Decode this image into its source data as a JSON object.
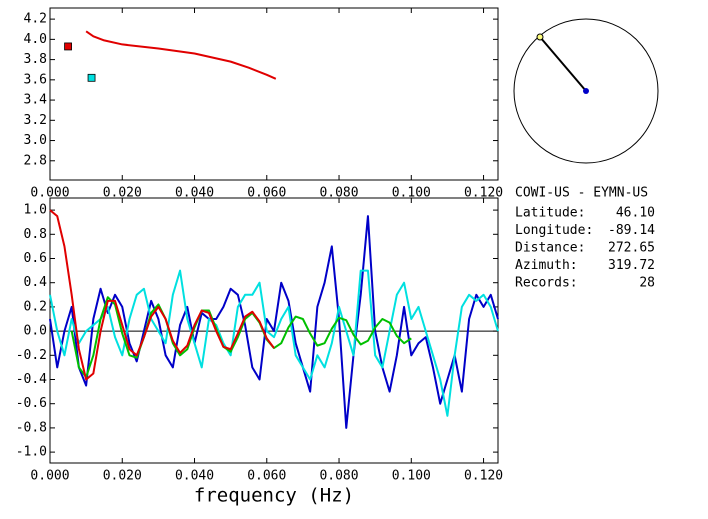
{
  "chart_data": [
    {
      "type": "line",
      "xlim": [
        0,
        0.124
      ],
      "ylim": [
        2.61,
        4.31
      ],
      "xticks": [
        {
          "value": 0,
          "label": "0.000"
        },
        {
          "value": 0.02,
          "label": "0.020"
        },
        {
          "value": 0.04,
          "label": "0.040"
        },
        {
          "value": 0.06,
          "label": "0.060"
        },
        {
          "value": 0.08,
          "label": "0.080"
        },
        {
          "value": 0.1,
          "label": "0.100"
        },
        {
          "value": 0.12,
          "label": "0.120"
        }
      ],
      "yticks": [
        2.8,
        {
          "value": 3,
          "label": "3.0"
        },
        3.2,
        3.4,
        3.6,
        3.8,
        {
          "value": 4,
          "label": "4.0"
        },
        4.2
      ],
      "series": [
        {
          "mode": "line",
          "color": "#e00000",
          "x": [
            0.01,
            0.012,
            0.015,
            0.02,
            0.03,
            0.04,
            0.05,
            0.055,
            0.06,
            0.0625
          ],
          "values": [
            4.08,
            4.03,
            3.99,
            3.95,
            3.91,
            3.86,
            3.78,
            3.72,
            3.65,
            3.61
          ]
        },
        {
          "mode": "marker",
          "color": "#e00000",
          "x": [
            0.005
          ],
          "values": [
            3.93
          ]
        },
        {
          "mode": "marker",
          "color": "#00e0e0",
          "x": [
            0.0115
          ],
          "values": [
            3.62
          ]
        }
      ]
    },
    {
      "type": "line",
      "xlabel": "frequency (Hz)",
      "zero_line": true,
      "xlim": [
        0,
        0.124
      ],
      "ylim": [
        -1.09,
        1.1
      ],
      "xticks": [
        {
          "value": 0,
          "label": "0.000"
        },
        {
          "value": 0.02,
          "label": "0.020"
        },
        {
          "value": 0.04,
          "label": "0.040"
        },
        {
          "value": 0.06,
          "label": "0.060"
        },
        {
          "value": 0.08,
          "label": "0.080"
        },
        {
          "value": 0.1,
          "label": "0.100"
        },
        {
          "value": 0.12,
          "label": "0.120"
        }
      ],
      "yticks": [
        {
          "value": -1,
          "label": "-1.0"
        },
        -0.8,
        -0.6,
        -0.4,
        -0.2,
        {
          "value": 0,
          "label": "0.0"
        },
        0.2,
        0.4,
        0.6,
        0.8,
        {
          "value": 1,
          "label": "1.0"
        }
      ],
      "series": [
        {
          "mode": "line",
          "color": "#0000c8",
          "x": [
            0,
            0.002,
            0.004,
            0.006,
            0.008,
            0.01,
            0.012,
            0.014,
            0.016,
            0.018,
            0.02,
            0.022,
            0.024,
            0.026,
            0.028,
            0.03,
            0.032,
            0.034,
            0.036,
            0.038,
            0.04,
            0.042,
            0.044,
            0.046,
            0.048,
            0.05,
            0.052,
            0.054,
            0.056,
            0.058,
            0.06,
            0.062,
            0.064,
            0.066,
            0.068,
            0.07,
            0.072,
            0.074,
            0.076,
            0.078,
            0.08,
            0.082,
            0.084,
            0.086,
            0.088,
            0.09,
            0.092,
            0.094,
            0.096,
            0.098,
            0.1,
            0.102,
            0.104,
            0.106,
            0.108,
            0.11,
            0.112,
            0.114,
            0.116,
            0.118,
            0.12,
            0.122,
            0.124
          ],
          "values": [
            0.1,
            -0.3,
            0.0,
            0.2,
            -0.3,
            -0.45,
            0.1,
            0.35,
            0.15,
            0.3,
            0.2,
            -0.1,
            -0.25,
            0.0,
            0.25,
            0.1,
            -0.2,
            -0.3,
            0.05,
            0.2,
            -0.1,
            0.15,
            0.1,
            0.1,
            0.2,
            0.35,
            0.3,
            0.05,
            -0.3,
            -0.4,
            0.1,
            0.0,
            0.4,
            0.25,
            -0.1,
            -0.3,
            -0.5,
            0.2,
            0.4,
            0.7,
            0.1,
            -0.8,
            -0.2,
            0.3,
            0.95,
            0.0,
            -0.3,
            -0.5,
            -0.2,
            0.2,
            -0.2,
            -0.1,
            -0.05,
            -0.3,
            -0.6,
            -0.4,
            -0.2,
            -0.5,
            0.1,
            0.3,
            0.2,
            0.3,
            0.1
          ]
        },
        {
          "mode": "line",
          "color": "#00e0e0",
          "x": [
            0,
            0.002,
            0.004,
            0.006,
            0.008,
            0.01,
            0.012,
            0.014,
            0.016,
            0.018,
            0.02,
            0.022,
            0.024,
            0.026,
            0.028,
            0.03,
            0.032,
            0.034,
            0.036,
            0.038,
            0.04,
            0.042,
            0.044,
            0.046,
            0.048,
            0.05,
            0.052,
            0.054,
            0.056,
            0.058,
            0.06,
            0.062,
            0.064,
            0.066,
            0.068,
            0.07,
            0.072,
            0.074,
            0.076,
            0.078,
            0.08,
            0.082,
            0.084,
            0.086,
            0.088,
            0.09,
            0.092,
            0.094,
            0.096,
            0.098,
            0.1,
            0.102,
            0.104,
            0.106,
            0.108,
            0.11,
            0.112,
            0.114,
            0.116,
            0.118,
            0.12,
            0.122,
            0.124
          ],
          "values": [
            0.3,
            0.0,
            -0.2,
            0.1,
            -0.1,
            0.0,
            0.05,
            0.1,
            0.2,
            -0.05,
            -0.2,
            0.1,
            0.3,
            0.35,
            0.1,
            0.0,
            -0.1,
            0.3,
            0.5,
            0.1,
            -0.1,
            -0.3,
            0.1,
            0.05,
            -0.1,
            -0.2,
            0.2,
            0.3,
            0.3,
            0.4,
            0.0,
            -0.05,
            0.1,
            0.2,
            -0.2,
            -0.3,
            -0.4,
            -0.2,
            -0.3,
            -0.1,
            0.2,
            0.0,
            -0.2,
            0.5,
            0.5,
            -0.2,
            -0.3,
            0.0,
            0.3,
            0.4,
            0.1,
            0.2,
            0.0,
            -0.2,
            -0.4,
            -0.7,
            -0.2,
            0.2,
            0.3,
            0.25,
            0.3,
            0.2,
            0.0
          ]
        },
        {
          "mode": "line",
          "color": "#00c000",
          "x": [
            0.006,
            0.008,
            0.01,
            0.012,
            0.014,
            0.016,
            0.018,
            0.02,
            0.022,
            0.024,
            0.026,
            0.028,
            0.03,
            0.032,
            0.034,
            0.036,
            0.038,
            0.04,
            0.042,
            0.044,
            0.046,
            0.048,
            0.05,
            0.052,
            0.054,
            0.056,
            0.058,
            0.06,
            0.062,
            0.064,
            0.066,
            0.068,
            0.07,
            0.072,
            0.074,
            0.076,
            0.078,
            0.08,
            0.082,
            0.084,
            0.086,
            0.088,
            0.09,
            0.092,
            0.094,
            0.096,
            0.098,
            0.1
          ],
          "values": [
            0.0,
            -0.3,
            -0.38,
            -0.2,
            0.1,
            0.28,
            0.22,
            -0.02,
            -0.2,
            -0.22,
            -0.05,
            0.15,
            0.22,
            0.1,
            -0.1,
            -0.2,
            -0.15,
            0.03,
            0.17,
            0.17,
            0.02,
            -0.13,
            -0.17,
            -0.05,
            0.1,
            0.15,
            0.07,
            -0.07,
            -0.14,
            -0.1,
            0.03,
            0.12,
            0.1,
            -0.02,
            -0.12,
            -0.1,
            0.02,
            0.11,
            0.09,
            -0.03,
            -0.11,
            -0.08,
            0.03,
            0.1,
            0.07,
            -0.04,
            -0.1,
            -0.06
          ]
        },
        {
          "mode": "line",
          "color": "#e00000",
          "x": [
            0,
            0.002,
            0.004,
            0.006,
            0.008,
            0.01,
            0.012,
            0.014,
            0.016,
            0.018,
            0.02,
            0.022,
            0.024,
            0.026,
            0.028,
            0.03,
            0.032,
            0.034,
            0.036,
            0.038,
            0.04,
            0.042,
            0.044,
            0.046,
            0.048,
            0.05,
            0.052,
            0.054,
            0.056,
            0.058,
            0.06,
            0.062
          ],
          "values": [
            1.0,
            0.95,
            0.7,
            0.3,
            -0.15,
            -0.4,
            -0.35,
            0.0,
            0.25,
            0.25,
            0.05,
            -0.15,
            -0.2,
            -0.05,
            0.12,
            0.2,
            0.1,
            -0.08,
            -0.18,
            -0.12,
            0.05,
            0.17,
            0.15,
            0.0,
            -0.13,
            -0.15,
            -0.02,
            0.12,
            0.16,
            0.08,
            -0.06,
            -0.14
          ]
        }
      ]
    }
  ],
  "info": {
    "station": "COWI-US - EYMN-US",
    "rows": [
      [
        "Latitude:",
        "46.10"
      ],
      [
        "Longitude:",
        "-89.14"
      ],
      [
        "Distance:",
        "272.65"
      ],
      [
        "Azimuth:",
        "319.72"
      ],
      [
        "Records:",
        "28"
      ]
    ]
  }
}
